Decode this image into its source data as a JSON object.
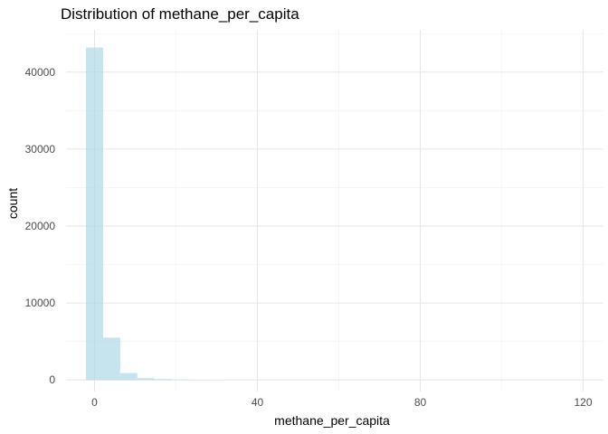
{
  "chart_data": {
    "type": "bar",
    "subtype": "histogram",
    "title": "Distribution of methane_per_capita",
    "xlabel": "methane_per_capita",
    "ylabel": "count",
    "xlim": [
      -7,
      125
    ],
    "ylim": [
      -1500,
      45500
    ],
    "x_ticks": [
      0,
      40,
      80,
      120
    ],
    "y_ticks": [
      0,
      10000,
      20000,
      30000,
      40000
    ],
    "x_tick_labels": [
      "0",
      "40",
      "80",
      "120"
    ],
    "y_tick_labels": [
      "0",
      "10000",
      "20000",
      "30000",
      "40000"
    ],
    "bin_width": 4.2,
    "bins": [
      {
        "start": -2.1,
        "end": 2.1,
        "count": 43200
      },
      {
        "start": 2.1,
        "end": 6.3,
        "count": 5500
      },
      {
        "start": 6.3,
        "end": 10.5,
        "count": 900
      },
      {
        "start": 10.5,
        "end": 14.7,
        "count": 250
      },
      {
        "start": 14.7,
        "end": 18.9,
        "count": 120
      },
      {
        "start": 18.9,
        "end": 23.1,
        "count": 60
      },
      {
        "start": 23.1,
        "end": 27.3,
        "count": 20
      },
      {
        "start": 27.3,
        "end": 31.5,
        "count": 10
      }
    ],
    "bar_color": "#add8e6",
    "grid": true,
    "legend": "none"
  }
}
